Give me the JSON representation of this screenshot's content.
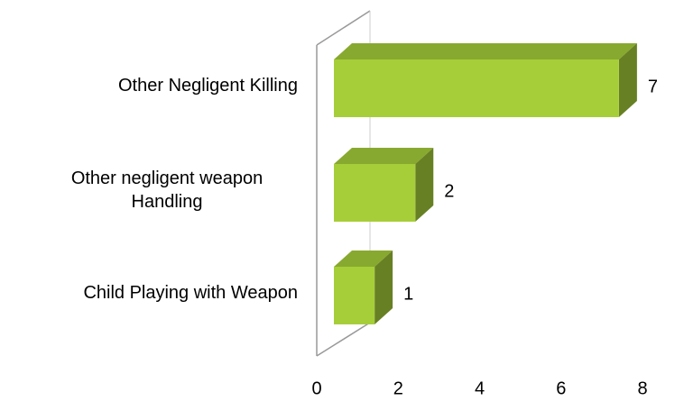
{
  "chart_data": {
    "type": "bar3d_horizontal",
    "categories": [
      "Other Negligent Killing",
      "Other negligent weapon Handling",
      "Child Playing with Weapon"
    ],
    "values": [
      7,
      2,
      1
    ],
    "color": "#a6ce39",
    "xlim": [
      0,
      8
    ],
    "xticks": [
      0,
      2,
      4,
      6,
      8
    ]
  }
}
